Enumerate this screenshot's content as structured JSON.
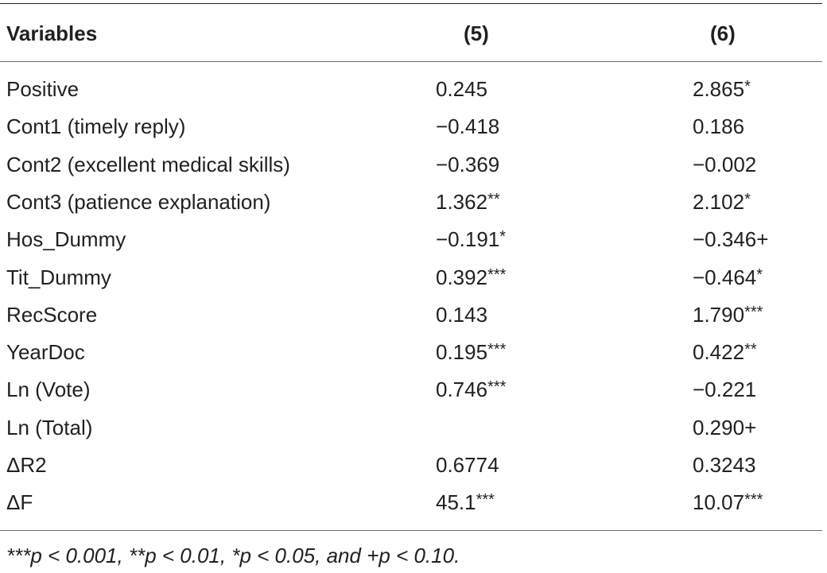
{
  "header": {
    "variables_label": "Variables",
    "col5_label": "(5)",
    "col6_label": "(6)"
  },
  "rows": [
    {
      "variable": "Positive",
      "col5": "0.245",
      "col5_sig": "",
      "col6": "2.865",
      "col6_sig": "*"
    },
    {
      "variable": "Cont1 (timely reply)",
      "col5": "−0.418",
      "col5_sig": "",
      "col6": "0.186",
      "col6_sig": ""
    },
    {
      "variable": "Cont2 (excellent medical skills)",
      "col5": "−0.369",
      "col5_sig": "",
      "col6": "−0.002",
      "col6_sig": ""
    },
    {
      "variable": "Cont3 (patience explanation)",
      "col5": "1.362",
      "col5_sig": "**",
      "col6": "2.102",
      "col6_sig": "*"
    },
    {
      "variable": "Hos_Dummy",
      "col5": "−0.191",
      "col5_sig": "*",
      "col6": "−0.346+",
      "col6_sig": ""
    },
    {
      "variable": "Tit_Dummy",
      "col5": "0.392",
      "col5_sig": "***",
      "col6": "−0.464",
      "col6_sig": "*"
    },
    {
      "variable": "RecScore",
      "col5": "0.143",
      "col5_sig": "",
      "col6": "1.790",
      "col6_sig": "***"
    },
    {
      "variable": "YearDoc",
      "col5": "0.195",
      "col5_sig": "***",
      "col6": "0.422",
      "col6_sig": "**"
    },
    {
      "variable": "Ln (Vote)",
      "col5": "0.746",
      "col5_sig": "***",
      "col6": "−0.221",
      "col6_sig": ""
    },
    {
      "variable": "Ln (Total)",
      "col5": "",
      "col5_sig": "",
      "col6": "0.290+",
      "col6_sig": ""
    },
    {
      "variable": "ΔR2",
      "col5": "0.6774",
      "col5_sig": "",
      "col6": "0.3243",
      "col6_sig": ""
    },
    {
      "variable": "ΔF",
      "col5": "45.1",
      "col5_sig": "***",
      "col6": "10.07",
      "col6_sig": "***"
    }
  ],
  "footnote": "***p < 0.001, **p < 0.01, *p < 0.05, and +p < 0.10."
}
